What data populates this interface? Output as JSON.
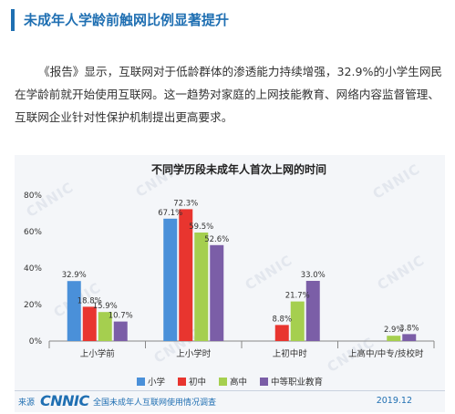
{
  "header": {
    "title": "未成年人学龄前触网比例显著提升"
  },
  "paragraph": "《报告》显示，互联网对于低龄群体的渗透能力持续增强，32.9%的小学生网民在学龄前就开始使用互联网。这一趋势对家庭的上网技能教育、网络内容监督管理、互联网企业针对性保护机制提出更高要求。",
  "watermark": "CNNIC",
  "footer": {
    "source_label": "来源",
    "logo": "CNNIC",
    "report": "全国未成年人互联网使用情况调查",
    "date": "2019.12"
  },
  "chart_data": {
    "type": "bar",
    "title": "不同学历段未成年人首次上网的时间",
    "xlabel": "",
    "ylabel": "",
    "categories": [
      "上小学前",
      "上小学时",
      "上初中时",
      "上高中/中专/技校时"
    ],
    "series": [
      {
        "name": "小学",
        "color": "#4a90d9",
        "values": [
          32.9,
          67.1,
          null,
          null
        ]
      },
      {
        "name": "初中",
        "color": "#e8352f",
        "values": [
          18.8,
          72.3,
          8.8,
          null
        ]
      },
      {
        "name": "高中",
        "color": "#a5cf4f",
        "values": [
          15.9,
          59.5,
          21.7,
          2.9
        ]
      },
      {
        "name": "中等职业教育",
        "color": "#7b5ea7",
        "values": [
          10.7,
          52.6,
          33.0,
          3.8
        ]
      }
    ],
    "ylim": [
      0,
      80
    ],
    "yticks": [
      0,
      20,
      40,
      60,
      80
    ],
    "ytick_format": "percent",
    "grid": false,
    "legend_position": "bottom"
  }
}
